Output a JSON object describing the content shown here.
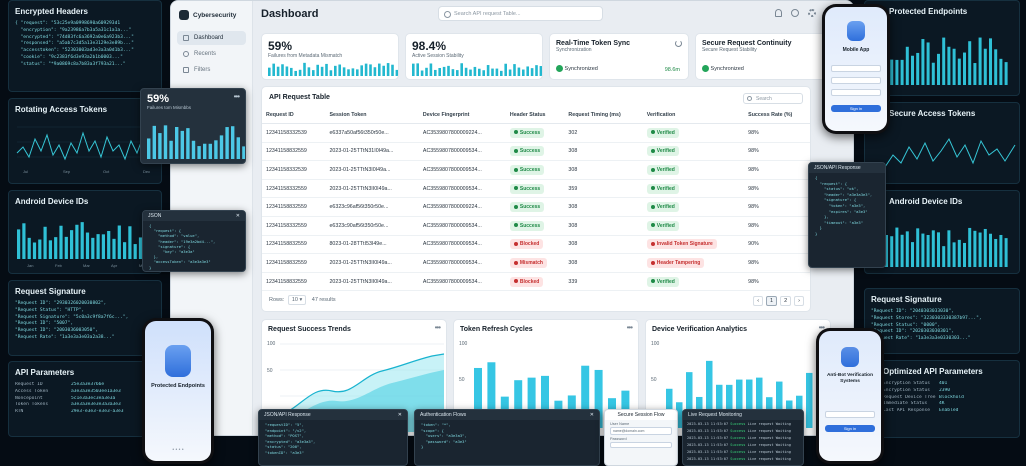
{
  "left_panels": {
    "encrypted_headers": {
      "title": "Encrypted Headers",
      "lines": [
        "{ \"request\": \"53c25e9a0998690a609293d1",
        "  \"encryption\": \"9a23986a7b3a5a31c1a1a...\"",
        "  \"encrypted\": \"74d83fc6a3692a0e6a923b3...\"",
        "  \"responsed\": \"a5ab7c3d5a13e3129e3e89b...\"",
        "  \"accesstoken\": \"52303003ad3e3a3a0d1b3...\"",
        "  \"cookie\": \"9c2383f6d3e93a2b1b0003...\"",
        "  \"status\": \"*9a0869c8a7b83a3f793a21...\""
      ]
    },
    "rotating_tokens": {
      "title": "Rotating Access Tokens",
      "x_labels": [
        "Jul",
        "Sep",
        "Oct",
        "Dec"
      ]
    },
    "android_ids": {
      "title": "Android Device IDs",
      "x_labels": [
        "Jan",
        "Feb",
        "Mar",
        "Apr",
        "May"
      ]
    },
    "request_signature": {
      "title": "Request Signature",
      "lines": [
        "\"Request ID\": \"2930326020030802\",",
        "\"Request Status\": \"HTTP\",",
        "\"Request Signature\": \"5c0a3c9f8a7f6c...\",",
        "\"Request ID\": \"5007\",",
        "\"Request ID\": \"2003036003050\",",
        "\"Request Rate\": \"1a3e3a3e03a2a38...\""
      ]
    },
    "api_params": {
      "title": "API Parameters",
      "rows": [
        [
          "Request ID",
          "25e3a3e3766e"
        ],
        [
          "Access Token",
          "a3e3a3e3503ee1a3e3"
        ],
        [
          "Noncepoint",
          "5c1e3a3ec3ea3e3a"
        ],
        [
          "Token Tokens",
          "a3e3a3e3e3e3a3a3e3"
        ],
        [
          "RTN",
          "29e3-e3e3-e3e3-a3e3"
        ]
      ]
    }
  },
  "sidebar": {
    "brand": "Cybersecurity",
    "items": [
      {
        "label": "Dashboard"
      },
      {
        "label": "Recents"
      },
      {
        "label": "Filters"
      }
    ]
  },
  "header": {
    "title": "Dashboard",
    "search_placeholder": "Search API request Table..."
  },
  "stats": {
    "mismatch": {
      "value": "59%",
      "caption": "Failures from Metadata Mismatch"
    },
    "session": {
      "value": "98.4%",
      "caption": "Active Session Stability"
    },
    "token_sync": {
      "title": "Real-Time Token Sync",
      "sub": "Synchronization",
      "status": "Synchronized",
      "value": "98.6m"
    },
    "continuity": {
      "title": "Secure Request Continuity",
      "sub": "Secure Request Stability",
      "status": "Synchronized"
    }
  },
  "table": {
    "title": "API Request Table",
    "search": "Search",
    "columns": [
      "Request ID",
      "Session Token",
      "Device Fingerprint",
      "Header Status",
      "Request Timing (ms)",
      "Verification",
      "Success Rate (%)"
    ],
    "rows": [
      [
        "12341158332539",
        "e6337a50af56t350r50e...",
        "AC3539807800009224...",
        "Success",
        "302",
        "Verified",
        "98%"
      ],
      [
        "12341158832559",
        "2023-01-25TTtN31I0I49a...",
        "AC3559807800009534...",
        "Success",
        "308",
        "Verified",
        "98%"
      ],
      [
        "12341158332539",
        "2023-01-25TTtN3I0I49a...",
        "AC3559807800009534...",
        "Success",
        "308",
        "Verified",
        "98%"
      ],
      [
        "12341158332559",
        "2023-01-25TTtN3II0I49a...",
        "AC3559807800009534...",
        "Success",
        "359",
        "Verified",
        "98%"
      ],
      [
        "12341158832559",
        "e6323c96af56t350r50e...",
        "AC3559807800009224...",
        "Success",
        "308",
        "Verified",
        "98%"
      ],
      [
        "12341158332559",
        "e6323c90af56t350r50e...",
        "AC3559807800009534...",
        "Success",
        "308",
        "Verified",
        "98%"
      ],
      [
        "12341158832559",
        "8023-01-28TTtI53I49e...",
        "AC3559807800009534...",
        "Blocked",
        "308",
        "Invalid Token Signature",
        "90%"
      ],
      [
        "12341158832559",
        "2023-01-25TTtN3II0I49a...",
        "AC3559807800009534...",
        "Mismatch",
        "308",
        "Header Tampering",
        "98%"
      ],
      [
        "12341158832559",
        "2023-01-25TTtN3II0I49a...",
        "AC3559807800009534...",
        "Blocked",
        "339",
        "Verified",
        "98%"
      ]
    ],
    "rows_label": "Rows:",
    "rows_value": "10",
    "results": "47 results",
    "pages": [
      "1",
      "2"
    ]
  },
  "bottom": {
    "trends": "Request Success Trends",
    "refresh": "Token Refresh Cycles",
    "device": "Device Verification Analytics",
    "y100": "100",
    "y50": "50"
  },
  "overlays": {
    "mismatch_card": {
      "value": "59%",
      "caption": "Failures tom Mismbbs"
    },
    "json_left": {
      "title": "JSON",
      "lines": [
        "{",
        "  \"request\": {",
        "    \"method\": \"value\",",
        "    \"header\": \"19e3a2bd4...\",",
        "    \"signature\": {",
        "      \"key\": \"a3e3a\"",
        "  },",
        "  \"accessToken\": \"a3e3a3e3\"",
        "}"
      ]
    },
    "json_right": {
      "title": "JSON/API Response",
      "lines": [
        "{",
        "  \"request\": {",
        "    \"status\": \"ok\",",
        "    \"header\": \"a3e3a3e3\",",
        "    \"signature\": {",
        "      \"token\": \"a3e3\",",
        "      \"expires\": \"a3e3\"",
        "    },",
        "    \"timeout\": \"a3e3\"",
        "  }",
        "}"
      ]
    },
    "json_api": {
      "title": "JSON/API Response",
      "lines": [
        "\"requestID\": \"5\",",
        "\"endpoint\": \"/v2\",",
        "\"method\": \"POST\",",
        "\"encrypted\": \"a3e3a3\",",
        "\"status\": \"200\",",
        "\"tokenID\": \"a3e3\""
      ]
    },
    "auth_flows": {
      "title": "Authentication Flows",
      "lines": [
        "\"token\": \"*\",",
        "\"scope\": {",
        "  \"users\": \"a3e3a3\",",
        "  \"password\": \"a3e3\"",
        "}"
      ]
    },
    "session_flow": {
      "title": "Secure Session Flow",
      "user": "User Name",
      "user_value": "name@domain.com",
      "pass": "Password"
    },
    "live": {
      "title": "Live Request Monitoring",
      "rows": [
        [
          "2023-03-13 11:53:07",
          "Success",
          "Live request Waiting"
        ],
        [
          "2023-03-13 11:53:07",
          "Success",
          "Live request Waiting"
        ],
        [
          "2023-03-13 11:53:07",
          "Success",
          "Live request Waiting"
        ],
        [
          "2023-03-13 11:53:07",
          "Success",
          "Live request Waiting"
        ],
        [
          "2023-03-13 11:53:07",
          "Success",
          "Live request Waiting"
        ],
        [
          "2023-03-13 11:53:07",
          "Success",
          "Live request Waiting"
        ]
      ]
    }
  },
  "phones": {
    "mobile": {
      "title": "Mobile App",
      "button": "Sign in"
    },
    "protected": {
      "title": "Protected Endpoints"
    },
    "antibot": {
      "title": "Anti-Bot Verification Systems",
      "button": "Sign in"
    }
  },
  "right_panels": {
    "endpoints": {
      "title": "Protected Endpoints"
    },
    "access_tokens": {
      "title": "Secure Access Tokens"
    },
    "android_ids": {
      "title": "Android Device IDs"
    },
    "request_signature": {
      "title": "Request Signature",
      "lines": [
        "\"Request ID\": \"2040303033030\",",
        "\"Request Stores\": \"3230303330387b97...\",",
        "\"Request Status\": \"0000\",",
        "\"Request ID\": \"2020303030301\",",
        "\"Request Rate\": \"1a3e3a3e0330303...\""
      ]
    },
    "api_params": {
      "title": "Optimized API Parameters",
      "rows": [
        [
          "Encryption Status",
          "401"
        ],
        [
          "Encryption Status",
          "2390"
        ],
        [
          "Request Device Tree",
          "Blockhold"
        ],
        [
          "Immediate Status",
          "4K"
        ],
        [
          "Last API Response",
          "Enabled"
        ]
      ]
    }
  }
}
